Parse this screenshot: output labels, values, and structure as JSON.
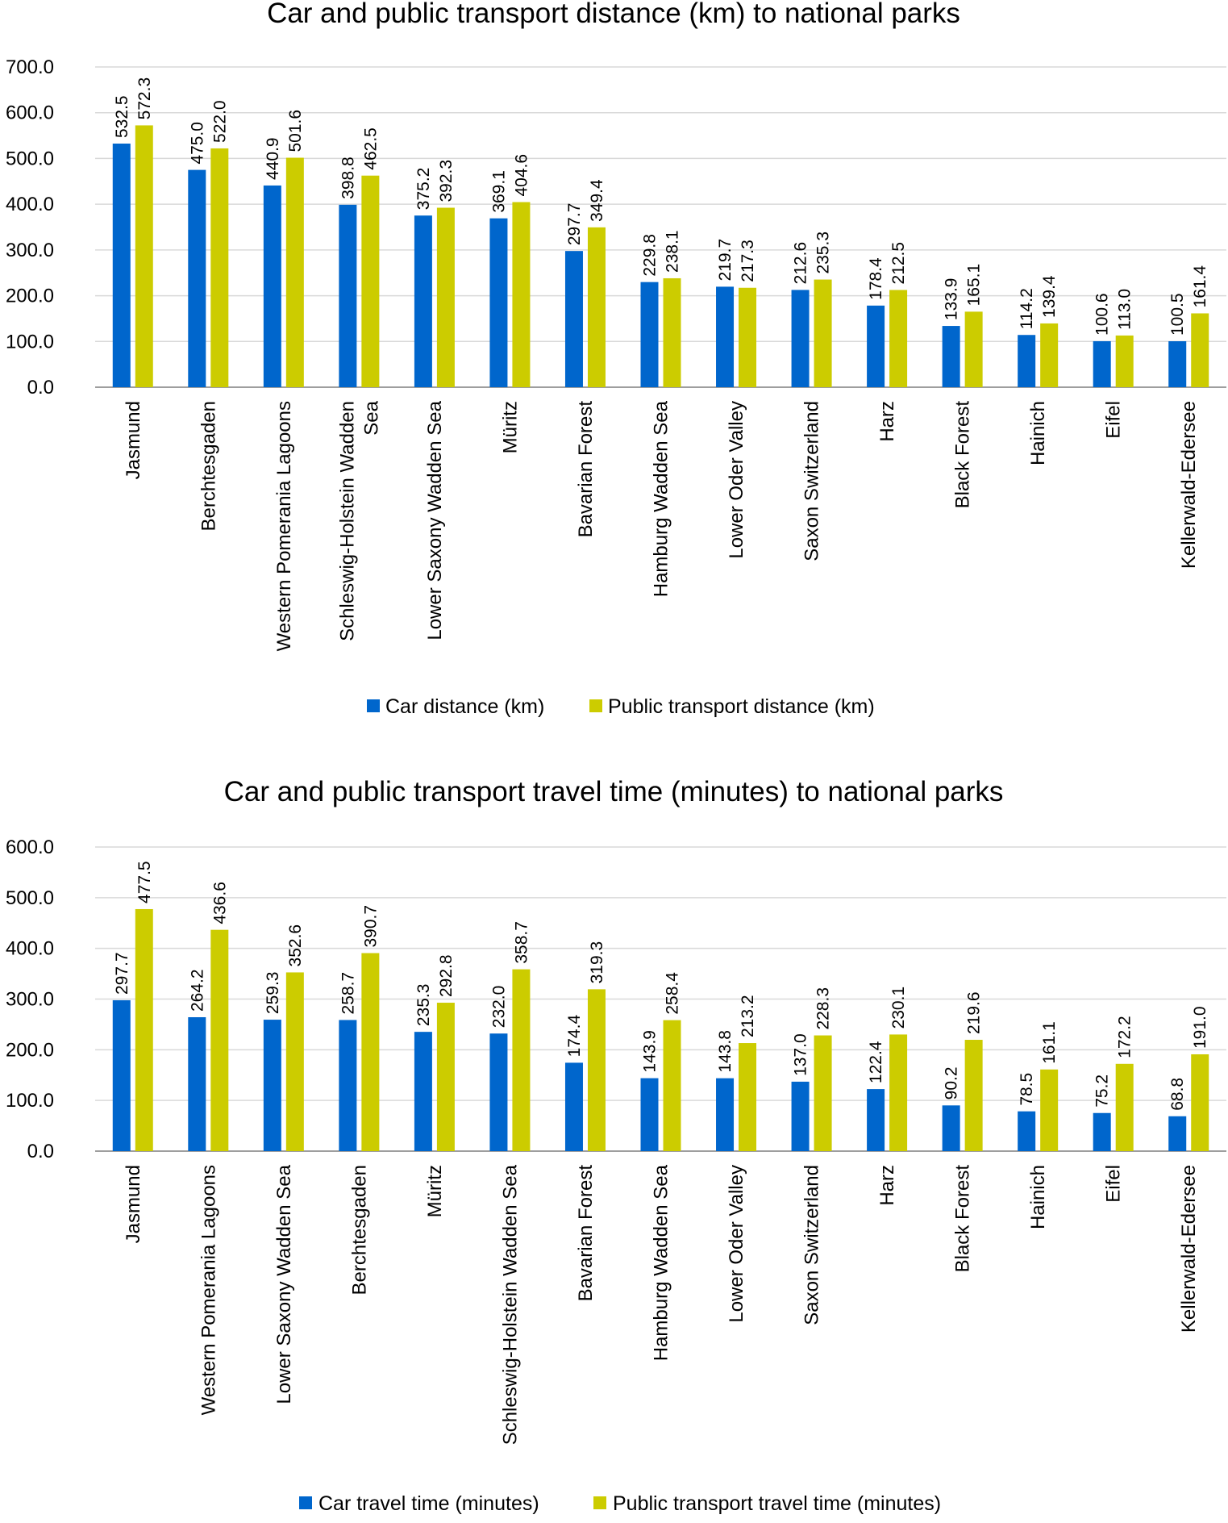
{
  "chart_data": [
    {
      "type": "bar",
      "title": "Car and public transport distance (km) to national parks",
      "categories": [
        "Jasmund",
        "Berchtesgaden",
        "Western Pomerania Lagoons",
        "Schleswig-Holstein Wadden|Sea",
        "Lower Saxony Wadden Sea",
        "Müritz",
        "Bavarian Forest",
        "Hamburg Wadden Sea",
        "Lower Oder Valley",
        "Saxon Switzerland",
        "Harz",
        "Black Forest",
        "Hainich",
        "Eifel",
        "Kellerwald-Edersee"
      ],
      "series": [
        {
          "name": "Car distance (km)",
          "color": "#0066cc",
          "values": [
            532.5,
            475.0,
            440.9,
            398.8,
            375.2,
            369.1,
            297.7,
            229.8,
            219.7,
            212.6,
            178.4,
            133.9,
            114.2,
            100.6,
            100.5
          ]
        },
        {
          "name": "Public transport distance (km)",
          "color": "#cccc00",
          "values": [
            572.3,
            522.0,
            501.6,
            462.5,
            392.3,
            404.6,
            349.4,
            238.1,
            217.3,
            235.3,
            212.5,
            165.1,
            139.4,
            113.0,
            161.4
          ]
        }
      ],
      "ylim": [
        0,
        700
      ],
      "yticks": [
        "0.0",
        "100.0",
        "200.0",
        "300.0",
        "400.0",
        "500.0",
        "600.0",
        "700.0"
      ],
      "grid": true,
      "legend": "bottom"
    },
    {
      "type": "bar",
      "title": "Car and public transport travel time (minutes) to national parks",
      "categories": [
        "Jasmund",
        "Western Pomerania Lagoons",
        "Lower Saxony Wadden Sea",
        "Berchtesgaden",
        "Müritz",
        "Schleswig-Holstein Wadden Sea",
        "Bavarian Forest",
        "Hamburg Wadden Sea",
        "Lower Oder Valley",
        "Saxon Switzerland",
        "Harz",
        "Black Forest",
        "Hainich",
        "Eifel",
        "Kellerwald-Edersee"
      ],
      "series": [
        {
          "name": "Car travel time (minutes)",
          "color": "#0066cc",
          "values": [
            297.7,
            264.2,
            259.3,
            258.7,
            235.3,
            232.0,
            174.4,
            143.9,
            143.8,
            137.0,
            122.4,
            90.2,
            78.5,
            75.2,
            68.8
          ]
        },
        {
          "name": "Public transport travel time (minutes)",
          "color": "#cccc00",
          "values": [
            477.5,
            436.6,
            352.6,
            390.7,
            292.8,
            358.7,
            319.3,
            258.4,
            213.2,
            228.3,
            230.1,
            219.6,
            161.1,
            172.2,
            191.0
          ]
        }
      ],
      "ylim": [
        0,
        600
      ],
      "yticks": [
        "0.0",
        "100.0",
        "200.0",
        "300.0",
        "400.0",
        "500.0",
        "600.0"
      ],
      "grid": true,
      "legend": "bottom"
    }
  ]
}
